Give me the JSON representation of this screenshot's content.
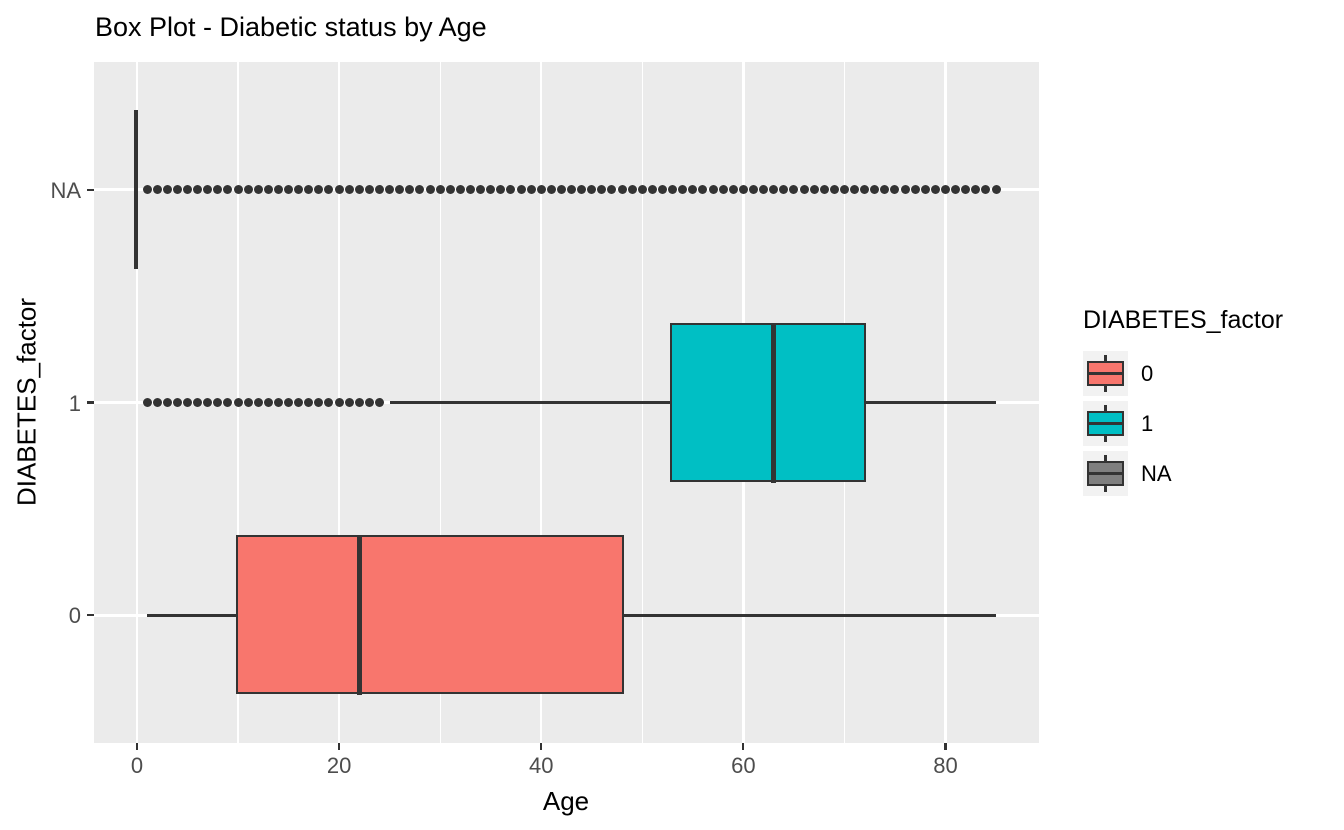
{
  "chart_data": {
    "type": "boxplot",
    "orientation": "horizontal",
    "title": "Box Plot - Diabetic status by Age",
    "xlabel": "Age",
    "ylabel": "DIABETES_factor",
    "categories": [
      "0",
      "1",
      "NA"
    ],
    "x_ticks": [
      0,
      20,
      40,
      60,
      80
    ],
    "x_minor_ticks": [
      10,
      30,
      50,
      70
    ],
    "xlim": [
      0,
      85
    ],
    "grid": "on",
    "series": [
      {
        "name": "0",
        "fill": "#F8766D",
        "whisker_min": 1,
        "q1": 10,
        "median": 22,
        "q3": 48,
        "whisker_max": 85,
        "outliers": []
      },
      {
        "name": "1",
        "fill": "#00BFC4",
        "whisker_min": 25,
        "q1": 53,
        "median": 63,
        "q3": 72,
        "whisker_max": 85,
        "outliers": [
          1,
          2,
          3,
          4,
          5,
          6,
          7,
          8,
          9,
          10,
          11,
          12,
          13,
          14,
          15,
          16,
          17,
          18,
          19,
          20,
          21,
          22,
          23,
          24
        ]
      },
      {
        "name": "NA",
        "fill": "#7F7F7F",
        "whisker_min": 0,
        "q1": 0,
        "median": 0,
        "q3": 0,
        "whisker_max": 0,
        "outliers": [
          1,
          2,
          3,
          4,
          5,
          6,
          7,
          8,
          9,
          10,
          11,
          12,
          13,
          14,
          15,
          16,
          17,
          18,
          19,
          20,
          21,
          22,
          23,
          24,
          25,
          26,
          27,
          28,
          29,
          30,
          31,
          32,
          33,
          34,
          35,
          36,
          37,
          38,
          39,
          40,
          41,
          42,
          43,
          44,
          45,
          46,
          47,
          48,
          49,
          50,
          51,
          52,
          53,
          54,
          55,
          56,
          57,
          58,
          59,
          60,
          61,
          62,
          63,
          64,
          65,
          66,
          67,
          68,
          69,
          70,
          71,
          72,
          73,
          74,
          75,
          76,
          77,
          78,
          79,
          80,
          81,
          82,
          83,
          84,
          85
        ]
      }
    ],
    "legend": {
      "title": "DIABETES_factor",
      "position": "right",
      "entries": [
        {
          "label": "0",
          "color": "#F8766D"
        },
        {
          "label": "1",
          "color": "#00BFC4"
        },
        {
          "label": "NA",
          "color": "#7F7F7F"
        }
      ]
    },
    "colors": {
      "panel_bg": "#EBEBEB",
      "grid": "#FFFFFF",
      "line": "#333333",
      "axis_text": "#4D4D4D",
      "title_text": "#000000",
      "legend_key_bg": "#F2F2F2"
    }
  }
}
